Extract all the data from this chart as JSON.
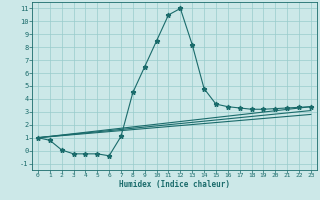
{
  "xlabel": "Humidex (Indice chaleur)",
  "bg_color": "#cce8e8",
  "grid_color": "#99cccc",
  "line_color": "#1a6b6b",
  "xlim": [
    -0.5,
    23.5
  ],
  "ylim": [
    -1.5,
    11.5
  ],
  "xticks": [
    0,
    1,
    2,
    3,
    4,
    5,
    6,
    7,
    8,
    9,
    10,
    11,
    12,
    13,
    14,
    15,
    16,
    17,
    18,
    19,
    20,
    21,
    22,
    23
  ],
  "yticks": [
    -1,
    0,
    1,
    2,
    3,
    4,
    5,
    6,
    7,
    8,
    9,
    10,
    11
  ],
  "main_x": [
    0,
    1,
    2,
    3,
    4,
    5,
    6,
    7,
    8,
    9,
    10,
    11,
    12,
    13,
    14,
    15,
    16,
    17,
    18,
    19,
    20,
    21,
    22,
    23
  ],
  "main_y": [
    1.0,
    0.8,
    0.05,
    -0.25,
    -0.25,
    -0.25,
    -0.4,
    1.1,
    4.5,
    6.5,
    8.5,
    10.5,
    11.0,
    8.2,
    4.8,
    3.6,
    3.4,
    3.3,
    3.2,
    3.2,
    3.25,
    3.3,
    3.35,
    3.4
  ],
  "line1_x": [
    0,
    23
  ],
  "line1_y": [
    1.0,
    3.4
  ],
  "line2_x": [
    0,
    23
  ],
  "line2_y": [
    1.0,
    3.1
  ],
  "line3_x": [
    0,
    23
  ],
  "line3_y": [
    1.0,
    2.8
  ]
}
